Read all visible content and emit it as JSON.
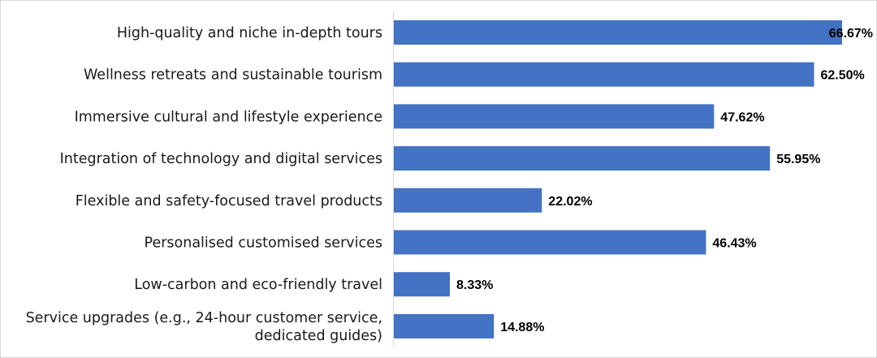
{
  "chart_data": {
    "type": "bar",
    "orientation": "horizontal",
    "categories": [
      [
        "High-quality and niche in-depth tours"
      ],
      [
        "Wellness retreats and sustainable tourism"
      ],
      [
        "Immersive cultural and lifestyle experience"
      ],
      [
        "Integration of technology and digital services"
      ],
      [
        "Flexible and safety-focused travel products"
      ],
      [
        "Personalised customised services"
      ],
      [
        "Low-carbon and eco-friendly travel"
      ],
      [
        "Service upgrades (e.g., 24-hour customer service,",
        "dedicated guides)"
      ]
    ],
    "values": [
      66.67,
      62.5,
      47.62,
      55.95,
      22.02,
      46.43,
      8.33,
      14.88
    ],
    "value_labels": [
      "66.67%",
      "62.50%",
      "47.62%",
      "55.95%",
      "22.02%",
      "46.43%",
      "8.33%",
      "14.88%"
    ],
    "unit": "%",
    "xlim": [
      0,
      70
    ],
    "bar_color": "#4472C4",
    "grid": false,
    "legend": "none",
    "title": "",
    "xlabel": "",
    "ylabel": ""
  }
}
